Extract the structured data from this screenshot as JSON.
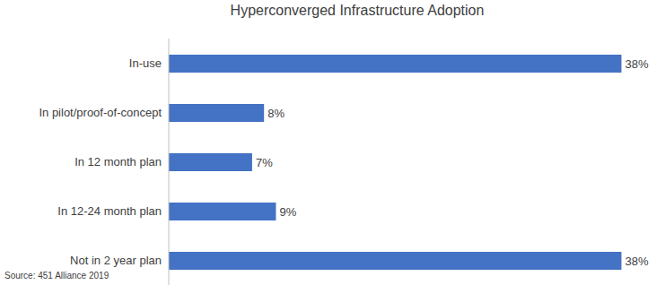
{
  "chart_data": {
    "type": "bar",
    "title": "Hyperconverged Infrastructure Adoption",
    "source": "Source: 451 Alliance 2019",
    "orientation": "horizontal",
    "categories": [
      "In-use",
      "In pilot/proof-of-concept",
      "In 12 month plan",
      "In 12-24 month plan",
      "Not in 2 year plan"
    ],
    "values": [
      38,
      8,
      7,
      9,
      38
    ],
    "value_labels": [
      "38%",
      "8%",
      "7%",
      "9%",
      "38%"
    ],
    "data_labels": true,
    "color": "#4472c4",
    "xlim": [
      0,
      40
    ],
    "tick_labels": "y",
    "grid": false
  }
}
